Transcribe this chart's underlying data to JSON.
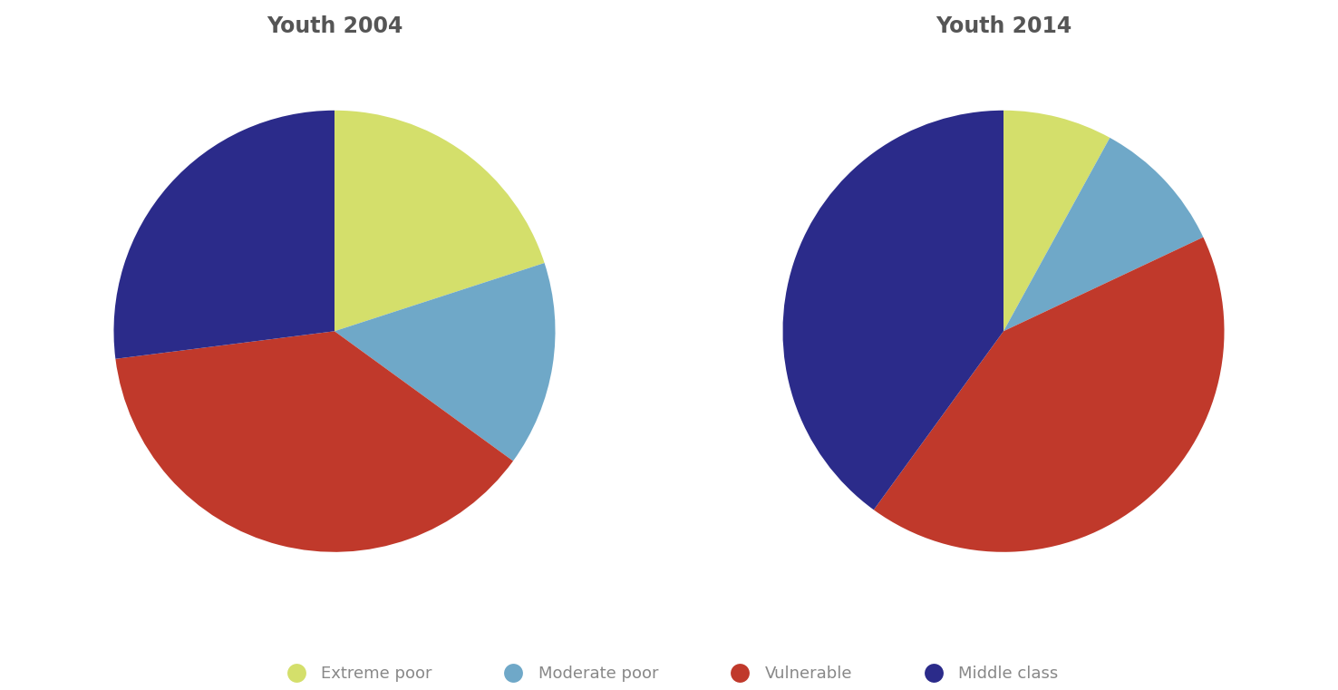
{
  "title_2004": "Youth 2004",
  "title_2014": "Youth 2014",
  "colors": {
    "extreme_poor": "#d4df6b",
    "moderate_poor": "#6fa8c8",
    "vulnerable": "#c0392b",
    "middle_class": "#2b2b8a"
  },
  "values_2004": [
    20,
    15,
    38,
    27
  ],
  "values_2014": [
    8,
    10,
    42,
    40
  ],
  "labels": [
    "Extreme poor",
    "Moderate poor",
    "Vulnerable",
    "Middle class"
  ],
  "startangle_2004": 90,
  "startangle_2014": 90,
  "title_fontsize": 17,
  "title_fontweight": "bold",
  "title_color": "#555555",
  "legend_fontsize": 13,
  "legend_color": "#888888",
  "background_color": "#ffffff"
}
